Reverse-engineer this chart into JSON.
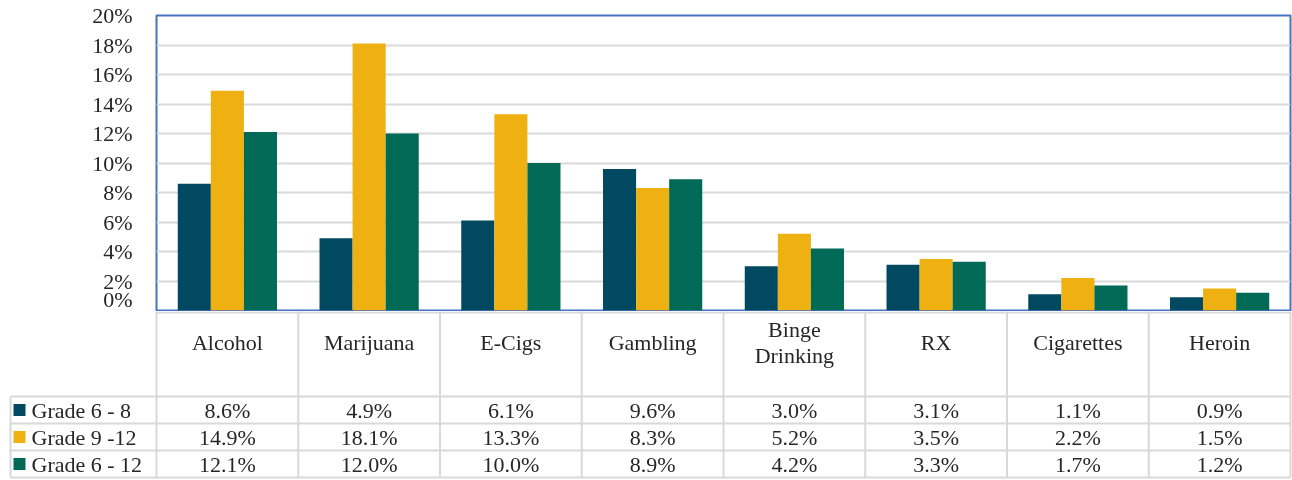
{
  "chart_data": {
    "type": "bar",
    "categories": [
      "Alcohol",
      "Marijuana",
      "E-Cigs",
      "Gambling",
      "Binge Drinking",
      "RX",
      "Cigarettes",
      "Heroin"
    ],
    "series": [
      {
        "name": "Grade 6 - 8",
        "color": "#014961",
        "values": [
          8.6,
          4.9,
          6.1,
          9.6,
          3.0,
          3.1,
          1.1,
          0.9
        ],
        "value_labels": [
          "8.6%",
          "4.9%",
          "6.1%",
          "9.6%",
          "3.0%",
          "3.1%",
          "1.1%",
          "0.9%"
        ]
      },
      {
        "name": "Grade 9 -12",
        "color": "#eeb111",
        "values": [
          14.9,
          18.1,
          13.3,
          8.3,
          5.2,
          3.5,
          2.2,
          1.5
        ],
        "value_labels": [
          "14.9%",
          "18.1%",
          "13.3%",
          "8.3%",
          "5.2%",
          "3.5%",
          "2.2%",
          "1.5%"
        ]
      },
      {
        "name": "Grade 6 - 12",
        "color": "#006a56",
        "values": [
          12.1,
          12.0,
          10.0,
          8.9,
          4.2,
          3.3,
          1.7,
          1.2
        ],
        "value_labels": [
          "12.1%",
          "12.0%",
          "10.0%",
          "8.9%",
          "4.2%",
          "3.3%",
          "1.7%",
          "1.2%"
        ]
      }
    ],
    "ylim": [
      0,
      20
    ],
    "yticks": [
      {
        "value": 0,
        "label": "0%"
      },
      {
        "value": 2,
        "label": "2%"
      },
      {
        "value": 4,
        "label": "4%"
      },
      {
        "value": 6,
        "label": "6%"
      },
      {
        "value": 8,
        "label": "8%"
      },
      {
        "value": 10,
        "label": "10%"
      },
      {
        "value": 12,
        "label": "12%"
      },
      {
        "value": 14,
        "label": "14%"
      },
      {
        "value": 16,
        "label": "16%"
      },
      {
        "value": 18,
        "label": "18%"
      },
      {
        "value": 20,
        "label": "20%"
      }
    ],
    "grid": "y",
    "legend": "bottom"
  }
}
